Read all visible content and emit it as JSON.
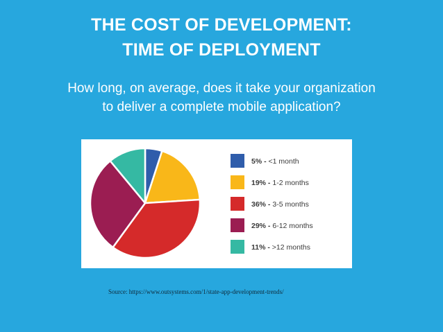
{
  "slide": {
    "title_line1": "THE COST OF DEVELOPMENT:",
    "title_line2": "TIME OF DEPLOYMENT",
    "subtitle_line1": "How long, on average, does it take your organization",
    "subtitle_line2": "to deliver a complete mobile application?",
    "source": "Source: https://www.outsystems.com/1/state-app-development-trends/"
  },
  "chart_data": {
    "type": "pie",
    "title": "",
    "legend_position": "right",
    "slices": [
      {
        "value": 5,
        "pct_label": "5% -",
        "range_label": "<1 month",
        "color": "#2f5dab"
      },
      {
        "value": 19,
        "pct_label": "19% -",
        "range_label": "1-2 months",
        "color": "#f9b719"
      },
      {
        "value": 36,
        "pct_label": "36% -",
        "range_label": "3-5 months",
        "color": "#d52a2a"
      },
      {
        "value": 29,
        "pct_label": "29% -",
        "range_label": "6-12 months",
        "color": "#9b1d52"
      },
      {
        "value": 11,
        "pct_label": "11% -",
        "range_label": ">12 months",
        "color": "#35b9a3"
      }
    ]
  }
}
